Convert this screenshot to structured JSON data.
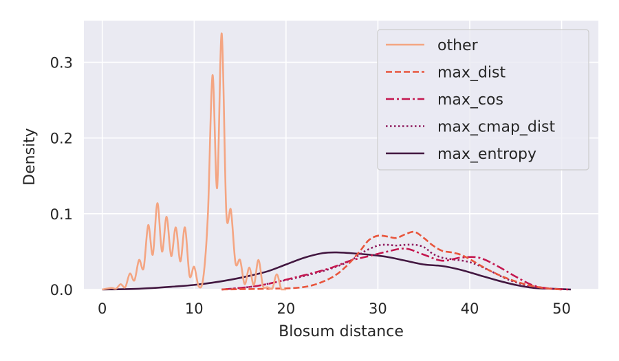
{
  "chart_data": {
    "type": "line",
    "title": "",
    "xlabel": "Blosum distance",
    "ylabel": "Density",
    "xlim": [
      -2,
      54
    ],
    "ylim": [
      0,
      0.355
    ],
    "xticks": [
      0,
      10,
      20,
      30,
      40,
      50
    ],
    "xtick_labels": [
      "0",
      "10",
      "20",
      "30",
      "40",
      "50"
    ],
    "yticks": [
      0.0,
      0.1,
      0.2,
      0.3
    ],
    "ytick_labels": [
      "0.0",
      "0.1",
      "0.2",
      "0.3"
    ],
    "grid": true,
    "legend_position": "top-right",
    "series": [
      {
        "name": "other",
        "color": "#f4a582",
        "dash": "solid",
        "x": [
          0,
          1,
          1.5,
          2,
          2.5,
          3,
          3.5,
          4,
          4.5,
          5,
          5.5,
          6,
          6.5,
          7,
          7.5,
          8,
          8.5,
          9,
          9.5,
          10,
          10.5,
          11,
          11.5,
          12,
          12.5,
          13,
          13.5,
          14,
          14.5,
          15,
          15.5,
          16,
          16.5,
          17,
          17.5,
          18,
          18.5,
          19,
          19.5,
          20
        ],
        "y": [
          0.0,
          0.002,
          0.001,
          0.007,
          0.003,
          0.021,
          0.012,
          0.039,
          0.028,
          0.085,
          0.046,
          0.114,
          0.05,
          0.096,
          0.044,
          0.082,
          0.037,
          0.082,
          0.018,
          0.03,
          0.004,
          0.016,
          0.1,
          0.283,
          0.134,
          0.338,
          0.102,
          0.105,
          0.035,
          0.039,
          0.007,
          0.029,
          0.006,
          0.039,
          0.004,
          0.003,
          0.001,
          0.02,
          0.0,
          0.0
        ]
      },
      {
        "name": "max_dist",
        "color": "#e8553c",
        "dash": "dashed",
        "x": [
          13,
          18,
          21,
          23,
          25,
          26.5,
          28,
          29,
          30,
          31,
          32,
          33,
          34,
          35,
          36,
          37,
          38,
          39,
          40,
          42,
          44,
          46,
          48,
          50
        ],
        "y": [
          0.0,
          0.001,
          0.002,
          0.006,
          0.016,
          0.03,
          0.05,
          0.065,
          0.071,
          0.07,
          0.068,
          0.073,
          0.076,
          0.068,
          0.058,
          0.051,
          0.049,
          0.046,
          0.04,
          0.026,
          0.015,
          0.007,
          0.002,
          0.0
        ]
      },
      {
        "name": "max_cos",
        "color": "#c4174f",
        "dash": "dashdot",
        "x": [
          13,
          15,
          17,
          19,
          21,
          23,
          25,
          27,
          29,
          31,
          33,
          35,
          37,
          39,
          41,
          43,
          45,
          47,
          49,
          51
        ],
        "y": [
          0.0,
          0.002,
          0.005,
          0.01,
          0.016,
          0.022,
          0.029,
          0.038,
          0.044,
          0.05,
          0.054,
          0.046,
          0.038,
          0.042,
          0.042,
          0.031,
          0.017,
          0.005,
          0.001,
          0.0
        ]
      },
      {
        "name": "max_cmap_dist",
        "color": "#8e1a5d",
        "dash": "dotted",
        "x": [
          13,
          15,
          17,
          19,
          21,
          23,
          25,
          27,
          28.5,
          30,
          31,
          32,
          33,
          34,
          35,
          36,
          37,
          38,
          40,
          42,
          44,
          46,
          48,
          50
        ],
        "y": [
          0.0,
          0.002,
          0.005,
          0.01,
          0.015,
          0.021,
          0.028,
          0.038,
          0.05,
          0.058,
          0.059,
          0.058,
          0.059,
          0.059,
          0.056,
          0.047,
          0.042,
          0.04,
          0.036,
          0.026,
          0.014,
          0.006,
          0.002,
          0.0
        ]
      },
      {
        "name": "max_entropy",
        "color": "#421740",
        "dash": "solid",
        "x": [
          0,
          4,
          8,
          10,
          12,
          14,
          16,
          18,
          20,
          22,
          24,
          25.5,
          27,
          29,
          31,
          33,
          35,
          37,
          39,
          41,
          43,
          45,
          47,
          49,
          51
        ],
        "y": [
          0.0,
          0.001,
          0.004,
          0.006,
          0.009,
          0.013,
          0.018,
          0.024,
          0.033,
          0.042,
          0.048,
          0.049,
          0.048,
          0.046,
          0.043,
          0.038,
          0.033,
          0.031,
          0.026,
          0.019,
          0.012,
          0.006,
          0.002,
          0.001,
          0.0
        ]
      }
    ]
  }
}
